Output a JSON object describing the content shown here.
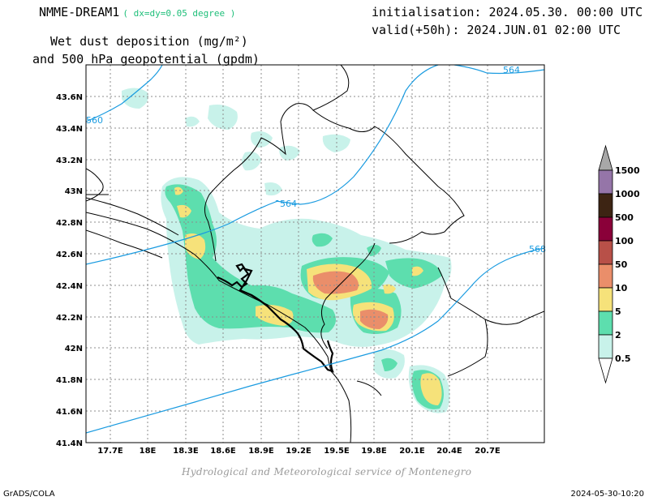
{
  "header": {
    "model": "NMME-DREAM1",
    "resolution": "( dx=dy=0.05 degree )",
    "title_line1": "Wet dust deposition (mg/m²)",
    "title_line2": "and 500 hPa geopotential (gpdm)",
    "initialisation": "initialisation: 2024.05.30. 00:00 UTC",
    "valid": "valid(+50h): 2024.JUN.01 02:00 UTC"
  },
  "map": {
    "lat_ticks": [
      "43.6N",
      "43.4N",
      "43.2N",
      "43N",
      "42.8N",
      "42.6N",
      "42.4N",
      "42.2N",
      "42N",
      "41.8N",
      "41.6N",
      "41.4N"
    ],
    "lon_ticks": [
      "17.7E",
      "18E",
      "18.3E",
      "18.6E",
      "18.9E",
      "19.2E",
      "19.5E",
      "19.8E",
      "20.1E",
      "20.4E",
      "20.7E"
    ],
    "contour_labels": [
      "560",
      "564",
      "564",
      "568"
    ]
  },
  "legend": {
    "levels": [
      "1500",
      "1000",
      "500",
      "100",
      "50",
      "10",
      "5",
      "2",
      "0.5"
    ],
    "colors": [
      "#a8a8a8",
      "#9575a8",
      "#3d2413",
      "#8a0039",
      "#b85048",
      "#ea8e6a",
      "#f6e27a",
      "#5ddeae",
      "#c8f2ea",
      "#ffffff"
    ]
  },
  "footer": {
    "credit": "Hydrological and Meteorological service of Montenegro",
    "software": "GrADS/COLA",
    "timestamp": "2024-05-30-10:20"
  }
}
